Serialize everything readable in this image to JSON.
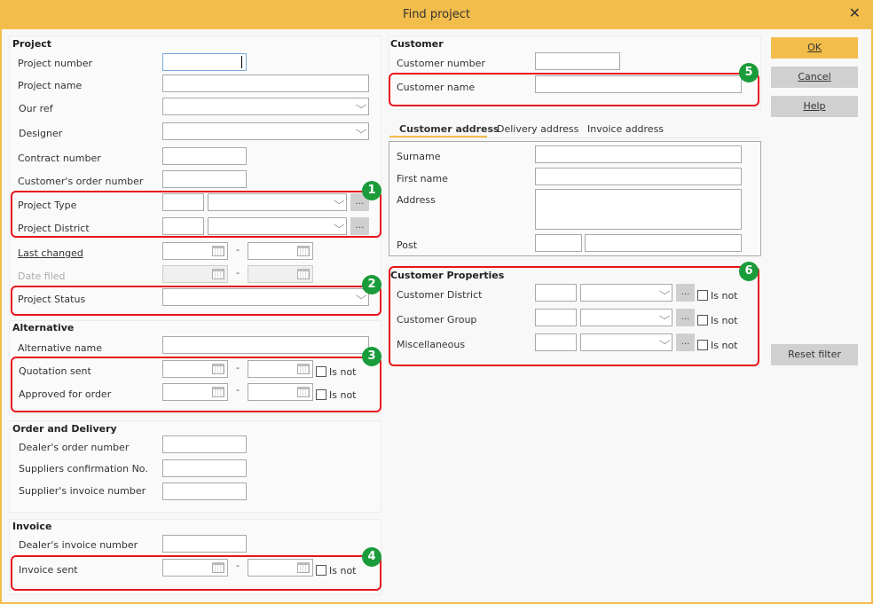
{
  "window": {
    "title": "Find project",
    "close_icon": "close-icon"
  },
  "project": {
    "heading": "Project",
    "project_number": "Project number",
    "project_name": "Project name",
    "our_ref": "Our ref",
    "designer": "Designer",
    "contract_number": "Contract number",
    "customers_order_number": "Customer's order number",
    "project_type": "Project Type",
    "project_district": "Project District",
    "last_changed": "Last changed",
    "date_filed": "Date filed",
    "project_status": "Project Status"
  },
  "alternative": {
    "heading": "Alternative",
    "alternative_name": "Alternative name",
    "quotation_sent": "Quotation sent",
    "approved_for_order": "Approved for order"
  },
  "order": {
    "heading": "Order and Delivery",
    "dealers_order_number": "Dealer's order number",
    "suppliers_confirmation": "Suppliers confirmation No.",
    "suppliers_invoice_number": "Supplier's invoice number"
  },
  "invoice": {
    "heading": "Invoice",
    "dealers_invoice_number": "Dealer's invoice number",
    "invoice_sent": "Invoice sent"
  },
  "customer": {
    "heading": "Customer",
    "customer_number": "Customer number",
    "customer_name": "Customer name"
  },
  "tabs": [
    {
      "label": "Customer address",
      "active": true
    },
    {
      "label": "Delivery address"
    },
    {
      "label": "Invoice address"
    }
  ],
  "address": {
    "surname": "Surname",
    "first_name": "First name",
    "address": "Address",
    "post": "Post"
  },
  "properties": {
    "heading": "Customer Properties",
    "customer_district": "Customer District",
    "customer_group": "Customer Group",
    "miscellaneous": "Miscellaneous"
  },
  "common": {
    "is_not": "Is not",
    "ellipsis": "...",
    "dash": "-"
  },
  "buttons": {
    "ok": "OK",
    "cancel": "Cancel",
    "help": "Help",
    "reset_filter": "Reset filter"
  },
  "badges": [
    "1",
    "2",
    "3",
    "4",
    "5",
    "6"
  ],
  "colors": {
    "accent": "#f2bd4b",
    "highlight": "#e8141c",
    "badge": "#1a9c3a"
  }
}
